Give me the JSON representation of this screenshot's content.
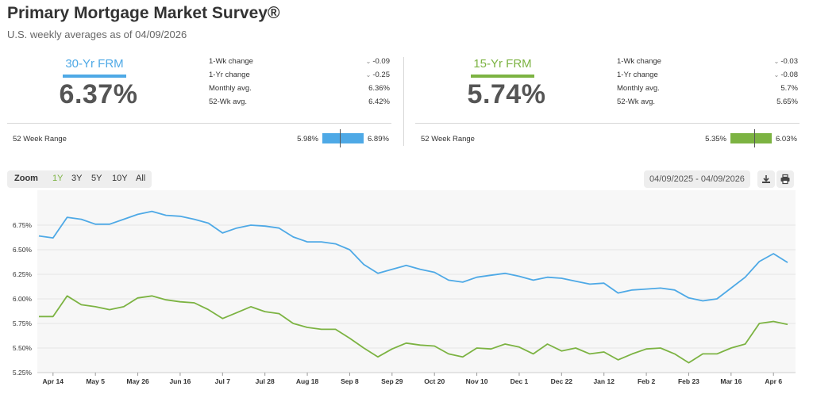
{
  "header": {
    "title": "Primary Mortgage Market Survey®",
    "subtitle": "U.S. weekly averages as of 04/09/2026"
  },
  "frm30": {
    "label": "30-Yr FRM",
    "rate": "6.37%",
    "color": "#4ea9e6",
    "stats": [
      {
        "label": "1-Wk change",
        "value": "-0.09",
        "chevron": true
      },
      {
        "label": "1-Yr change",
        "value": "-0.25",
        "chevron": true
      },
      {
        "label": "Monthly avg.",
        "value": "6.36%",
        "chevron": false
      },
      {
        "label": "52-Wk avg.",
        "value": "6.42%",
        "chevron": false
      }
    ],
    "range_label": "52 Week Range",
    "range_low": "5.98%",
    "range_high": "6.89%",
    "range_current": 6.37
  },
  "frm15": {
    "label": "15-Yr FRM",
    "rate": "5.74%",
    "color": "#7cb342",
    "stats": [
      {
        "label": "1-Wk change",
        "value": "-0.03",
        "chevron": true
      },
      {
        "label": "1-Yr change",
        "value": "-0.08",
        "chevron": true
      },
      {
        "label": "Monthly avg.",
        "value": "5.7%",
        "chevron": false
      },
      {
        "label": "52-Wk avg.",
        "value": "5.65%",
        "chevron": false
      }
    ],
    "range_label": "52 Week Range",
    "range_low": "5.35%",
    "range_high": "6.03%",
    "range_current": 5.74
  },
  "toolbar": {
    "zoom_label": "Zoom",
    "zoom_options": [
      "1Y",
      "3Y",
      "5Y",
      "10Y",
      "All"
    ],
    "zoom_active": "1Y",
    "date_range": "04/09/2025 - 04/09/2026",
    "download_icon": "download-icon",
    "print_icon": "print-icon"
  },
  "chart_data": {
    "type": "line",
    "x_tick_labels": [
      "Apr 14",
      "May 5",
      "May 26",
      "Jun 16",
      "Jul 7",
      "Jul 28",
      "Aug 18",
      "Sep 8",
      "Sep 29",
      "Oct 20",
      "Nov 10",
      "Dec 1",
      "Dec 22",
      "Jan 12",
      "Feb 2",
      "Feb 23",
      "Mar 16",
      "Apr 6"
    ],
    "y_ticks": [
      "5.25%",
      "5.50%",
      "5.75%",
      "6.00%",
      "6.25%",
      "6.50%",
      "6.75%"
    ],
    "ylim": [
      5.25,
      7.0
    ],
    "series": [
      {
        "name": "30-Yr FRM",
        "color": "#4ea9e6",
        "values": [
          6.64,
          6.62,
          6.83,
          6.81,
          6.76,
          6.76,
          6.81,
          6.86,
          6.89,
          6.85,
          6.84,
          6.81,
          6.77,
          6.67,
          6.72,
          6.75,
          6.74,
          6.72,
          6.63,
          6.58,
          6.58,
          6.56,
          6.5,
          6.35,
          6.26,
          6.3,
          6.34,
          6.3,
          6.27,
          6.19,
          6.17,
          6.22,
          6.24,
          6.26,
          6.23,
          6.19,
          6.22,
          6.21,
          6.18,
          6.15,
          6.16,
          6.06,
          6.09,
          6.1,
          6.11,
          6.09,
          6.01,
          5.98,
          6.0,
          6.11,
          6.22,
          6.38,
          6.46,
          6.37
        ]
      },
      {
        "name": "15-Yr FRM",
        "color": "#7cb342",
        "values": [
          5.82,
          5.82,
          6.03,
          5.94,
          5.92,
          5.89,
          5.92,
          6.01,
          6.03,
          5.99,
          5.97,
          5.96,
          5.89,
          5.8,
          5.86,
          5.92,
          5.87,
          5.85,
          5.75,
          5.71,
          5.69,
          5.69,
          5.6,
          5.5,
          5.41,
          5.49,
          5.55,
          5.53,
          5.52,
          5.44,
          5.41,
          5.5,
          5.49,
          5.54,
          5.51,
          5.44,
          5.54,
          5.47,
          5.5,
          5.44,
          5.46,
          5.38,
          5.44,
          5.49,
          5.5,
          5.44,
          5.35,
          5.44,
          5.44,
          5.5,
          5.54,
          5.75,
          5.77,
          5.74
        ]
      }
    ],
    "grid": true,
    "legend": "none"
  }
}
